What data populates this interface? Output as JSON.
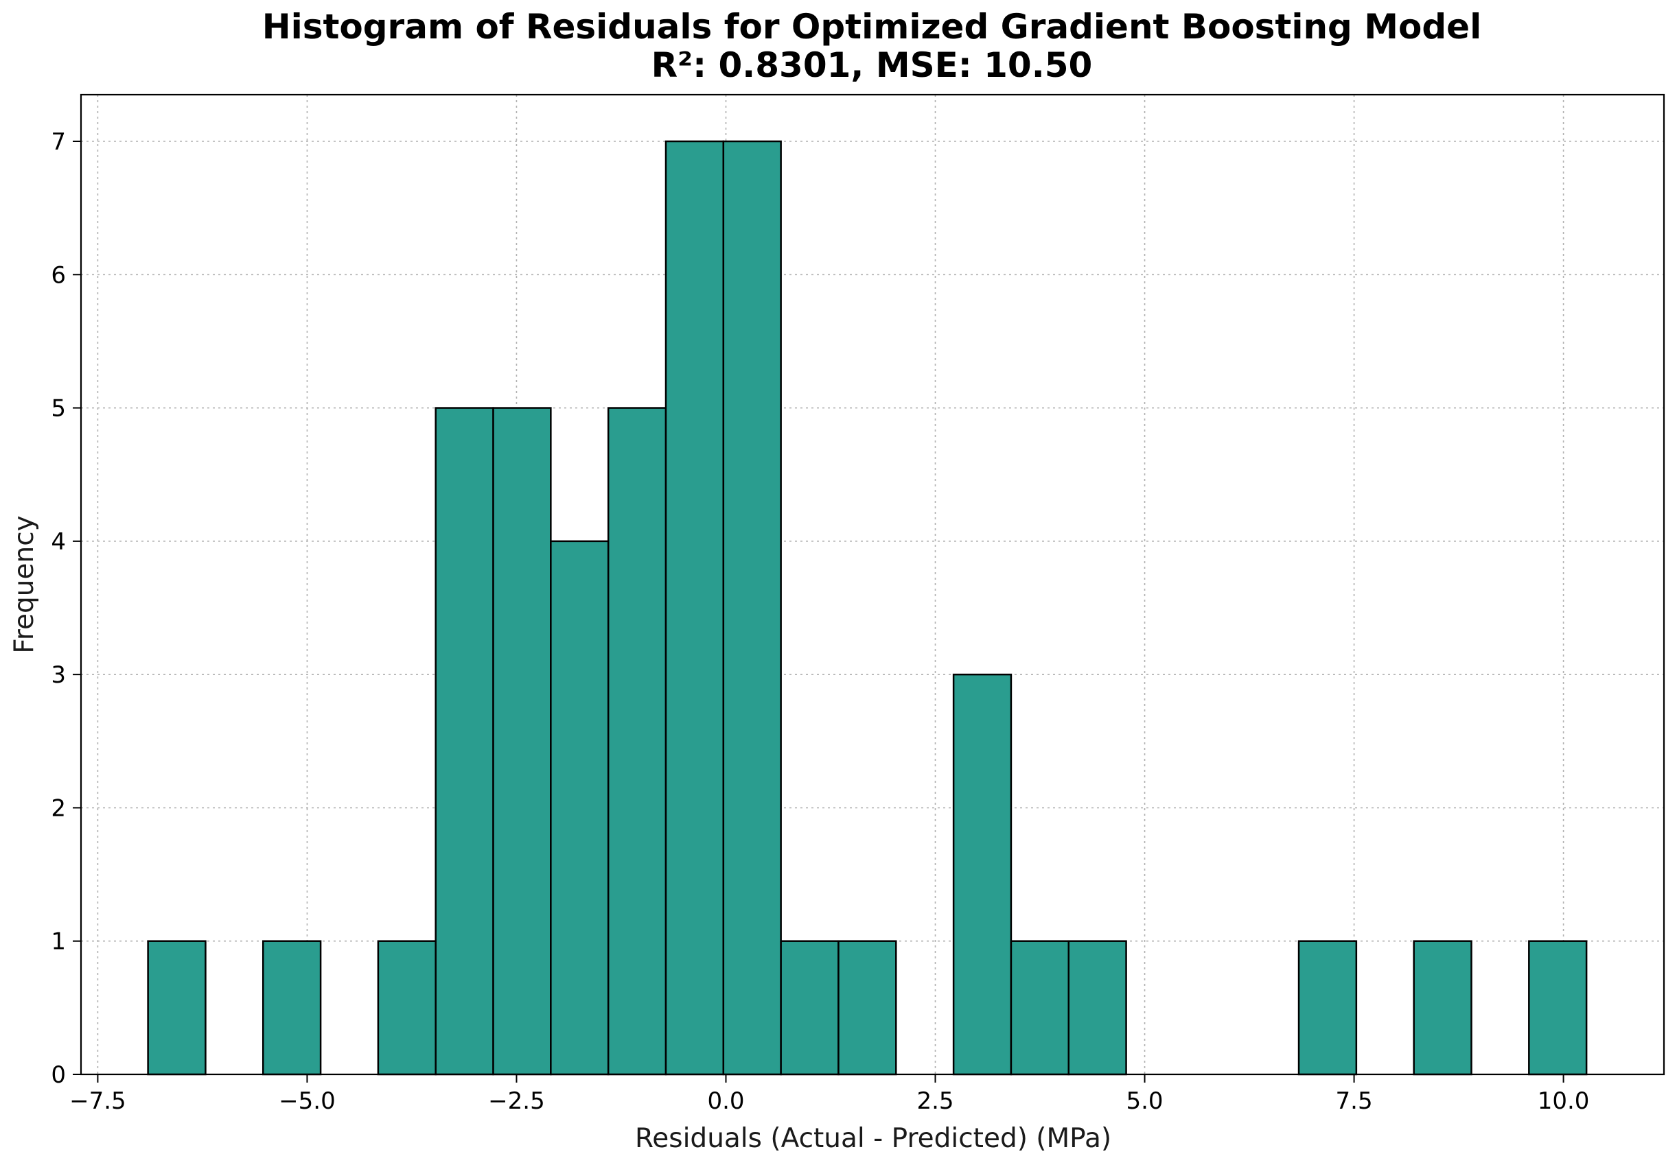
{
  "chart_data": {
    "type": "bar",
    "title": "Histogram of Residuals for Optimized Gradient Boosting Model",
    "subtitle": "R²: 0.8301, MSE: 10.50",
    "xlabel": "Residuals (Actual - Predicted) (MPa)",
    "ylabel": "Frequency",
    "xlim": [
      -7.7,
      11.2
    ],
    "ylim": [
      0,
      7.35
    ],
    "grid": true,
    "bar_color": "#2a9d8f",
    "edge_color": "#000000",
    "bin_start": -6.9,
    "bin_width": 0.687,
    "counts": [
      1,
      0,
      1,
      0,
      1,
      5,
      5,
      4,
      5,
      7,
      7,
      1,
      1,
      0,
      3,
      1,
      1,
      0,
      0,
      0,
      1,
      0,
      1,
      0,
      1
    ],
    "x_ticks": [
      -7.5,
      -5.0,
      -2.5,
      0.0,
      2.5,
      5.0,
      7.5,
      10.0
    ],
    "x_tick_labels": [
      "−7.5",
      "−5.0",
      "−2.5",
      "0.0",
      "2.5",
      "5.0",
      "7.5",
      "10.0"
    ],
    "y_ticks": [
      0,
      1,
      2,
      3,
      4,
      5,
      6,
      7
    ],
    "y_tick_labels": [
      "0",
      "1",
      "2",
      "3",
      "4",
      "5",
      "6",
      "7"
    ]
  }
}
